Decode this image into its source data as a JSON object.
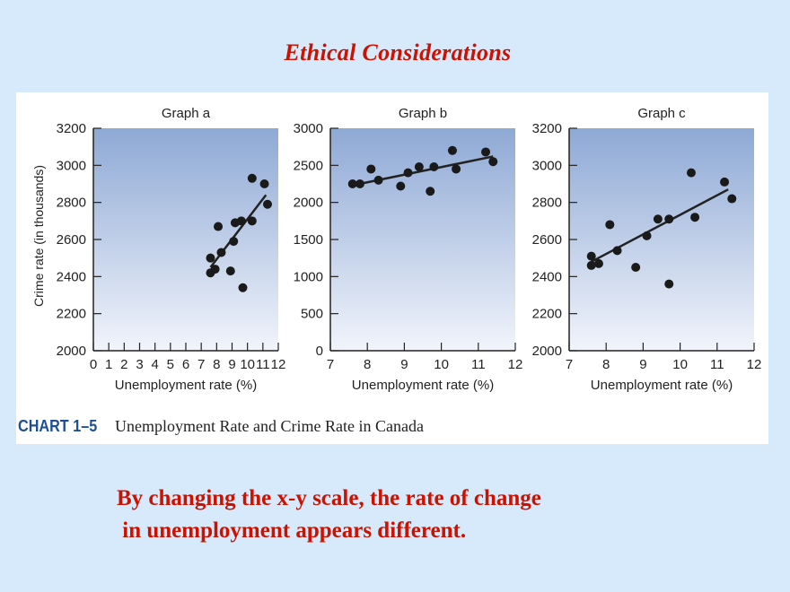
{
  "slide": {
    "title": "Ethical Considerations",
    "bottom_text_line1": "By changing the x-y scale, the rate of change",
    "bottom_text_line2": " in unemployment appears different."
  },
  "figure": {
    "caption_tag": "CHART 1–5",
    "caption_text": "Unemployment Rate and Crime Rate in Canada",
    "shared_ylabel": "Crime rate (in thousands)"
  },
  "colors": {
    "plot_background_top": "#8ea9d5",
    "plot_background_bottom": "#f1f4fb",
    "point": "#1a1a1a",
    "trend_line": "#222222",
    "title_red": "#cc1100",
    "caption_blue": "#1b4f8f"
  },
  "chart_data": [
    {
      "type": "scatter",
      "title": "Graph a",
      "xlabel": "Unemployment rate (%)",
      "ylabel": "Crime rate (in thousands)",
      "xlim": [
        0,
        12
      ],
      "ylim": [
        2000,
        3200
      ],
      "xticks": [
        0,
        1,
        2,
        3,
        4,
        5,
        6,
        7,
        8,
        9,
        10,
        11,
        12
      ],
      "yticks": [
        2000,
        2200,
        2400,
        2600,
        2800,
        3000,
        3200
      ],
      "points": [
        [
          7.6,
          2420
        ],
        [
          7.6,
          2500
        ],
        [
          7.9,
          2440
        ],
        [
          8.1,
          2670
        ],
        [
          8.3,
          2530
        ],
        [
          8.9,
          2430
        ],
        [
          9.1,
          2590
        ],
        [
          9.2,
          2690
        ],
        [
          9.6,
          2700
        ],
        [
          9.7,
          2340
        ],
        [
          10.3,
          2930
        ],
        [
          10.3,
          2700
        ],
        [
          11.1,
          2900
        ],
        [
          11.3,
          2790
        ]
      ],
      "trend": [
        [
          7.6,
          2450
        ],
        [
          11.2,
          2840
        ]
      ]
    },
    {
      "type": "scatter",
      "title": "Graph b",
      "xlabel": "Unemployment rate (%)",
      "ylabel": "",
      "xlim": [
        7,
        12
      ],
      "ylim": [
        0,
        3000
      ],
      "xticks": [
        7,
        8,
        9,
        10,
        11,
        12
      ],
      "yticks": [
        0,
        500,
        1000,
        1500,
        2000,
        2500,
        3000
      ],
      "points": [
        [
          7.6,
          2250
        ],
        [
          7.8,
          2250
        ],
        [
          8.1,
          2450
        ],
        [
          8.3,
          2300
        ],
        [
          8.9,
          2220
        ],
        [
          9.1,
          2400
        ],
        [
          9.4,
          2480
        ],
        [
          9.7,
          2150
        ],
        [
          9.8,
          2480
        ],
        [
          10.3,
          2700
        ],
        [
          10.4,
          2450
        ],
        [
          11.2,
          2680
        ],
        [
          11.4,
          2550
        ]
      ],
      "trend": [
        [
          7.6,
          2230
        ],
        [
          11.4,
          2620
        ]
      ]
    },
    {
      "type": "scatter",
      "title": "Graph c",
      "xlabel": "Unemployment rate (%)",
      "ylabel": "",
      "xlim": [
        7,
        12
      ],
      "ylim": [
        2000,
        3200
      ],
      "xticks": [
        7,
        8,
        9,
        10,
        11,
        12
      ],
      "yticks": [
        2000,
        2200,
        2400,
        2600,
        2800,
        3000,
        3200
      ],
      "points": [
        [
          7.6,
          2510
        ],
        [
          7.6,
          2460
        ],
        [
          7.8,
          2470
        ],
        [
          8.1,
          2680
        ],
        [
          8.3,
          2540
        ],
        [
          8.8,
          2450
        ],
        [
          9.1,
          2620
        ],
        [
          9.4,
          2710
        ],
        [
          9.7,
          2360
        ],
        [
          9.7,
          2710
        ],
        [
          10.3,
          2960
        ],
        [
          10.4,
          2720
        ],
        [
          11.2,
          2910
        ],
        [
          11.4,
          2820
        ]
      ],
      "trend": [
        [
          7.6,
          2480
        ],
        [
          11.3,
          2870
        ]
      ]
    }
  ]
}
